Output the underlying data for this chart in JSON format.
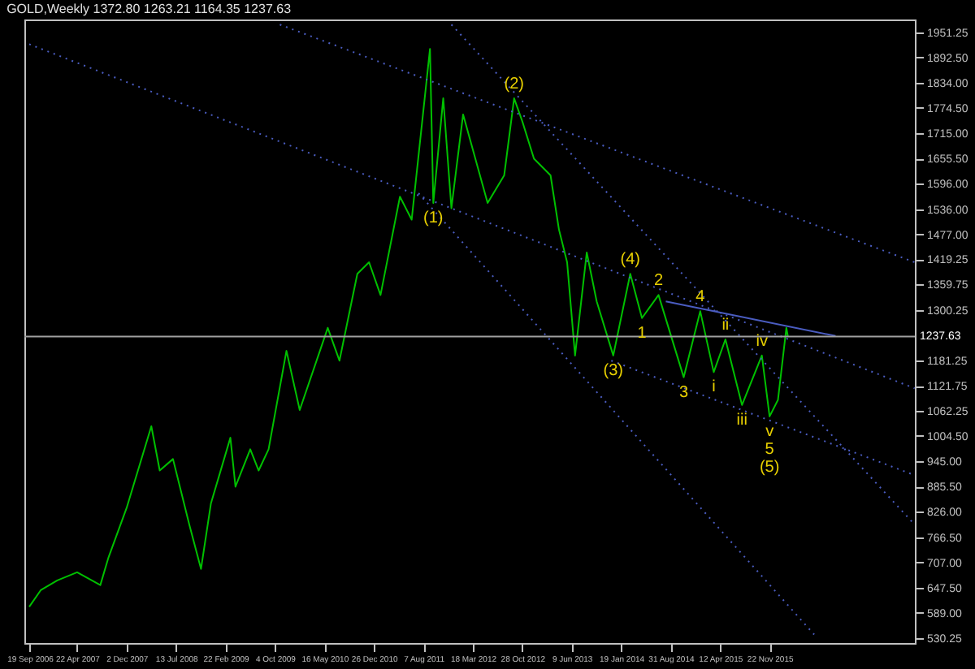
{
  "chart_data": {
    "type": "line",
    "title": "GOLD,Weekly  1372.80 1263.21 1164.35 1237.63",
    "xlim": [
      "2006-08-26",
      "2017-09-10"
    ],
    "xticks": [
      {
        "value": "2006-09-19",
        "label": "19 Sep 2006"
      },
      {
        "value": "2007-04-22",
        "label": "22 Apr 2007"
      },
      {
        "value": "2007-12-02",
        "label": "2 Dec 2007"
      },
      {
        "value": "2008-07-13",
        "label": "13 Jul 2008"
      },
      {
        "value": "2009-02-22",
        "label": "22 Feb 2009"
      },
      {
        "value": "2009-10-04",
        "label": "4 Oct 2009"
      },
      {
        "value": "2010-05-16",
        "label": "16 May 2010"
      },
      {
        "value": "2010-12-26",
        "label": "26 Dec 2010"
      },
      {
        "value": "2011-08-07",
        "label": "7 Aug 2011"
      },
      {
        "value": "2012-03-18",
        "label": "18 Mar 2012"
      },
      {
        "value": "2012-10-28",
        "label": "28 Oct 2012"
      },
      {
        "value": "2013-06-09",
        "label": "9 Jun 2013"
      },
      {
        "value": "2014-01-19",
        "label": "19 Jan 2014"
      },
      {
        "value": "2014-08-31",
        "label": "31 Aug 2014"
      },
      {
        "value": "2015-04-12",
        "label": "12 Apr 2015"
      },
      {
        "value": "2015-11-22",
        "label": "22 Nov 2015"
      }
    ],
    "ylim": [
      518,
      1982
    ],
    "yticks": [
      {
        "value": 1951.25,
        "label": "1951.25"
      },
      {
        "value": 1892.5,
        "label": "1892.50"
      },
      {
        "value": 1834,
        "label": "1834.00"
      },
      {
        "value": 1774.5,
        "label": "1774.50"
      },
      {
        "value": 1715,
        "label": "1715.00"
      },
      {
        "value": 1655.5,
        "label": "1655.50"
      },
      {
        "value": 1596,
        "label": "1596.00"
      },
      {
        "value": 1536,
        "label": "1536.00"
      },
      {
        "value": 1477,
        "label": "1477.00"
      },
      {
        "value": 1419.25,
        "label": "1419.25"
      },
      {
        "value": 1359.75,
        "label": "1359.75"
      },
      {
        "value": 1300.25,
        "label": "1300.25"
      },
      {
        "value": 1181.25,
        "label": "1181.25"
      },
      {
        "value": 1121.75,
        "label": "1121.75"
      },
      {
        "value": 1062.25,
        "label": "1062.25"
      },
      {
        "value": 1004.5,
        "label": "1004.50"
      },
      {
        "value": 945,
        "label": "945.00"
      },
      {
        "value": 885.5,
        "label": "885.50"
      },
      {
        "value": 826,
        "label": "826.00"
      },
      {
        "value": 766.5,
        "label": "766.50"
      },
      {
        "value": 707,
        "label": "707.00"
      },
      {
        "value": 647.5,
        "label": "647.50"
      },
      {
        "value": 589,
        "label": "589.00"
      },
      {
        "value": 530.25,
        "label": "530.25"
      }
    ],
    "series": [
      {
        "color": "#00c000",
        "x": [
          "2006-09-17",
          "2006-11-08",
          "2007-01-22",
          "2007-04-22",
          "2007-08-05",
          "2007-09-11",
          "2007-12-02",
          "2008-03-23",
          "2008-04-30",
          "2008-06-29",
          "2008-09-11",
          "2008-11-03",
          "2008-12-18",
          "2009-03-16",
          "2009-04-08",
          "2009-06-14",
          "2009-07-22",
          "2009-09-05",
          "2009-11-25",
          "2010-01-24",
          "2010-05-31",
          "2010-07-23",
          "2010-10-12",
          "2010-12-04",
          "2011-01-25",
          "2011-04-23",
          "2011-06-15",
          "2011-09-06",
          "2011-09-21",
          "2011-11-05",
          "2011-12-12",
          "2012-02-03",
          "2012-05-24",
          "2012-08-07",
          "2012-09-21",
          "2012-10-28",
          "2012-12-20",
          "2013-03-05",
          "2013-04-12",
          "2013-05-19",
          "2013-06-24",
          "2013-08-16",
          "2013-09-30",
          "2013-12-14",
          "2014-03-01",
          "2014-04-23",
          "2014-07-07",
          "2014-10-29",
          "2015-01-12",
          "2015-03-14",
          "2015-05-06",
          "2015-07-20",
          "2015-10-18",
          "2015-11-22",
          "2015-12-30",
          "2016-02-06",
          "2016-02-13"
        ],
        "values": [
          603,
          642,
          665,
          684,
          654,
          719,
          835,
          1027,
          923,
          950,
          796,
          692,
          846,
          1000,
          885,
          973,
          923,
          973,
          1204,
          1065,
          1258,
          1181,
          1385,
          1412,
          1335,
          1566,
          1512,
          1913,
          1551,
          1797,
          1539,
          1759,
          1551,
          1616,
          1797,
          1743,
          1655,
          1616,
          1489,
          1412,
          1193,
          1435,
          1320,
          1193,
          1385,
          1281,
          1335,
          1142,
          1297,
          1154,
          1231,
          1077,
          1193,
          1050,
          1089,
          1258,
          1237.63
        ]
      },
      {
        "type": "line",
        "color": "#4a5cc0",
        "line_style": "dotted",
        "x": [
          "2009-10-26",
          "2017-09-09"
        ],
        "values": [
          1970,
          1412
        ]
      },
      {
        "type": "line",
        "color": "#4a5cc0",
        "line_style": "dotted",
        "x": [
          "2006-09-17",
          "2017-09-09"
        ],
        "values": [
          1924,
          1116
        ]
      },
      {
        "type": "line",
        "color": "#4a5cc0",
        "line_style": "dotted",
        "x": [
          "2011-12-12",
          "2017-09-09"
        ],
        "values": [
          1970,
          796
        ]
      },
      {
        "type": "line",
        "color": "#4a5cc0",
        "line_style": "dotted",
        "x": [
          "2011-07-16",
          "2016-06-11"
        ],
        "values": [
          1574,
          538
        ]
      },
      {
        "type": "line",
        "color": "#4a5cc0",
        "line_style": "solid",
        "x": [
          "2014-08-09",
          "2016-09-16"
        ],
        "values": [
          1320,
          1239
        ]
      },
      {
        "type": "line",
        "color": "#4a5cc0",
        "line_style": "dotted",
        "x": [
          "2013-12-05",
          "2017-09-09"
        ],
        "values": [
          1181,
          912
        ]
      }
    ],
    "ref_lines": [
      {
        "axis": "y",
        "value": 1237.63,
        "label": "1237.63",
        "color": "#a0a0a0",
        "line_style": "solid"
      }
    ],
    "annotations": [
      {
        "text": "(1)",
        "x": "2011-09-21",
        "y": 1551
      },
      {
        "text": "(2)",
        "x": "2012-09-21",
        "y": 1797
      },
      {
        "text": "(3)",
        "x": "2013-12-14",
        "y": 1193
      },
      {
        "text": "(4)",
        "x": "2014-03-01",
        "y": 1385
      },
      {
        "text": "(5)",
        "x": "2015-11-22",
        "y": 1050
      },
      {
        "text": "1",
        "x": "2014-04-23",
        "y": 1281
      },
      {
        "text": "2",
        "x": "2014-07-07",
        "y": 1335
      },
      {
        "text": "3",
        "x": "2014-10-29",
        "y": 1142
      },
      {
        "text": "4",
        "x": "2015-01-12",
        "y": 1297
      },
      {
        "text": "5",
        "x": "2015-11-22",
        "y": 1050
      },
      {
        "text": "i",
        "x": "2015-03-14",
        "y": 1154
      },
      {
        "text": "ii",
        "x": "2015-05-06",
        "y": 1231
      },
      {
        "text": "iii",
        "x": "2015-07-20",
        "y": 1077
      },
      {
        "text": "iv",
        "x": "2015-10-18",
        "y": 1193
      },
      {
        "text": "v",
        "x": "2015-11-22",
        "y": 1050
      }
    ],
    "grid": false
  }
}
